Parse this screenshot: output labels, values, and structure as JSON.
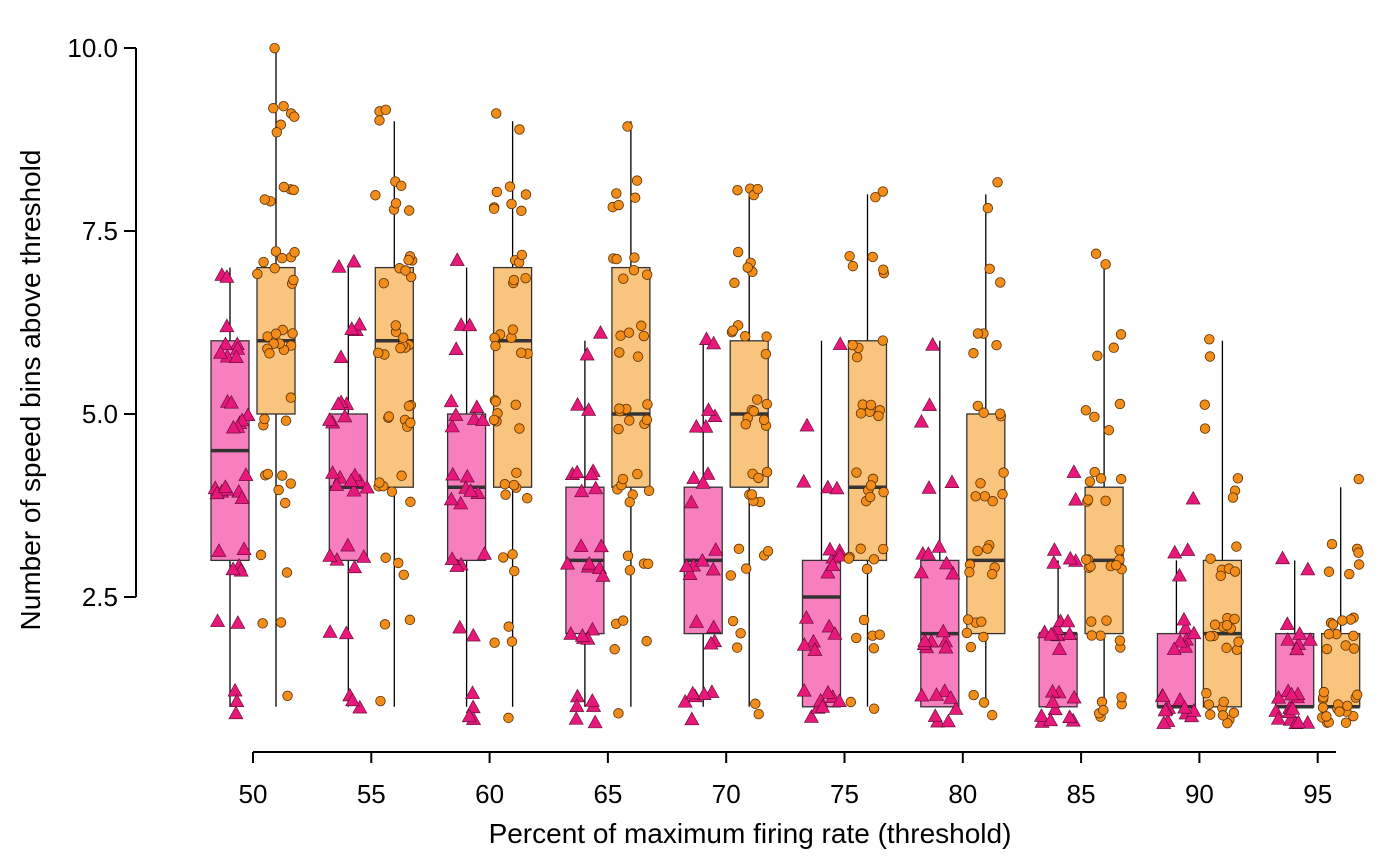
{
  "chart_data": {
    "type": "box",
    "xlabel": "Percent of maximum firing rate (threshold)",
    "ylabel": "Number of speed bins above threshold",
    "categories": [
      "50",
      "55",
      "60",
      "65",
      "70",
      "75",
      "80",
      "85",
      "90",
      "95"
    ],
    "y_ticks": [
      "2.5",
      "5.0",
      "7.5",
      "10.0"
    ],
    "ylim": [
      0.7,
      10.0
    ],
    "grid": false,
    "legend": "none",
    "colors": {
      "pink_fill": "#f77fbf",
      "pink_marker": "#e6187a",
      "orange_fill": "#f9c47e",
      "orange_marker": "#f28c1b",
      "outline": "#333333"
    },
    "series": [
      {
        "marker": "triangle",
        "boxes": [
          {
            "q1": 3.0,
            "median": 4.5,
            "q3": 6.0,
            "whisker_low": 1.0,
            "whisker_high": 7.0
          },
          {
            "q1": 3.0,
            "median": 4.0,
            "q3": 5.0,
            "whisker_low": 1.0,
            "whisker_high": 7.0
          },
          {
            "q1": 3.0,
            "median": 4.0,
            "q3": 5.0,
            "whisker_low": 1.0,
            "whisker_high": 7.0
          },
          {
            "q1": 2.0,
            "median": 3.0,
            "q3": 4.0,
            "whisker_low": 1.0,
            "whisker_high": 6.0
          },
          {
            "q1": 2.0,
            "median": 3.0,
            "q3": 4.0,
            "whisker_low": 1.0,
            "whisker_high": 6.0
          },
          {
            "q1": 1.0,
            "median": 2.5,
            "q3": 3.0,
            "whisker_low": 1.0,
            "whisker_high": 6.0
          },
          {
            "q1": 1.0,
            "median": 2.0,
            "q3": 3.0,
            "whisker_low": 1.0,
            "whisker_high": 6.0
          },
          {
            "q1": 1.0,
            "median": 2.0,
            "q3": 2.0,
            "whisker_low": 1.0,
            "whisker_high": 3.0
          },
          {
            "q1": 1.0,
            "median": 1.0,
            "q3": 2.0,
            "whisker_low": 1.0,
            "whisker_high": 3.0
          },
          {
            "q1": 1.0,
            "median": 1.0,
            "q3": 2.0,
            "whisker_low": 1.0,
            "whisker_high": 3.0
          }
        ],
        "points": [
          [
            1,
            1,
            1,
            2,
            2,
            3,
            3,
            3,
            3,
            3,
            4,
            4,
            4,
            4,
            4,
            4,
            4,
            4,
            5,
            5,
            5,
            5,
            5,
            5,
            5,
            6,
            6,
            6,
            6,
            6,
            6,
            6,
            7,
            7
          ],
          [
            1,
            1,
            1,
            2,
            2,
            3,
            3,
            3,
            3,
            3,
            4,
            4,
            4,
            4,
            4,
            4,
            4,
            4,
            5,
            5,
            5,
            5,
            5,
            5,
            6,
            6,
            6,
            6,
            7,
            7
          ],
          [
            1,
            1,
            1,
            1,
            2,
            2,
            3,
            3,
            3,
            3,
            4,
            4,
            4,
            4,
            4,
            4,
            4,
            5,
            5,
            5,
            5,
            5,
            5,
            6,
            6,
            6,
            7
          ],
          [
            1,
            1,
            1,
            1,
            1,
            1,
            2,
            2,
            2,
            2,
            2,
            3,
            3,
            3,
            3,
            3,
            3,
            3,
            4,
            4,
            4,
            4,
            4,
            4,
            5,
            5,
            6,
            6
          ],
          [
            1,
            1,
            1,
            1,
            1,
            1,
            2,
            2,
            2,
            2,
            3,
            3,
            3,
            3,
            3,
            3,
            4,
            4,
            4,
            4,
            5,
            5,
            5,
            5,
            6,
            6
          ],
          [
            1,
            1,
            1,
            1,
            1,
            1,
            1,
            1,
            2,
            2,
            2,
            2,
            2,
            2,
            3,
            3,
            3,
            3,
            3,
            3,
            4,
            4,
            4,
            5,
            6
          ],
          [
            1,
            1,
            1,
            1,
            1,
            1,
            1,
            1,
            2,
            2,
            2,
            2,
            2,
            2,
            2,
            3,
            3,
            3,
            3,
            3,
            3,
            4,
            4,
            5,
            5,
            6
          ],
          [
            1,
            1,
            1,
            1,
            1,
            1,
            1,
            1,
            1,
            1,
            2,
            2,
            2,
            2,
            2,
            2,
            2,
            2,
            2,
            3,
            3,
            3,
            3,
            4,
            4
          ],
          [
            1,
            1,
            1,
            1,
            1,
            1,
            1,
            1,
            1,
            1,
            1,
            1,
            2,
            2,
            2,
            2,
            2,
            2,
            2,
            3,
            3,
            3,
            4
          ],
          [
            1,
            1,
            1,
            1,
            1,
            1,
            1,
            1,
            1,
            1,
            1,
            1,
            1,
            1,
            2,
            2,
            2,
            2,
            2,
            2,
            3,
            3
          ]
        ]
      },
      {
        "marker": "circle",
        "boxes": [
          {
            "q1": 5.0,
            "median": 6.0,
            "q3": 7.0,
            "whisker_low": 1.0,
            "whisker_high": 10.0
          },
          {
            "q1": 4.0,
            "median": 6.0,
            "q3": 7.0,
            "whisker_low": 1.0,
            "whisker_high": 9.0
          },
          {
            "q1": 4.0,
            "median": 6.0,
            "q3": 7.0,
            "whisker_low": 1.0,
            "whisker_high": 9.0
          },
          {
            "q1": 4.0,
            "median": 5.0,
            "q3": 7.0,
            "whisker_low": 1.0,
            "whisker_high": 9.0
          },
          {
            "q1": 4.0,
            "median": 5.0,
            "q3": 6.0,
            "whisker_low": 1.0,
            "whisker_high": 8.0
          },
          {
            "q1": 3.0,
            "median": 4.0,
            "q3": 6.0,
            "whisker_low": 1.0,
            "whisker_high": 8.0
          },
          {
            "q1": 2.0,
            "median": 3.0,
            "q3": 5.0,
            "whisker_low": 1.0,
            "whisker_high": 8.0
          },
          {
            "q1": 2.0,
            "median": 3.0,
            "q3": 4.0,
            "whisker_low": 1.0,
            "whisker_high": 7.0
          },
          {
            "q1": 1.0,
            "median": 2.0,
            "q3": 3.0,
            "whisker_low": 1.0,
            "whisker_high": 6.0
          },
          {
            "q1": 1.0,
            "median": 1.0,
            "q3": 2.0,
            "whisker_low": 1.0,
            "whisker_high": 4.0
          }
        ],
        "points": [
          [
            1,
            2,
            2,
            3,
            3,
            4,
            4,
            4,
            4,
            4,
            4,
            5,
            5,
            5,
            5,
            6,
            6,
            6,
            6,
            6,
            6,
            6,
            6,
            6,
            6,
            7,
            7,
            7,
            7,
            7,
            7,
            7,
            7,
            7,
            8,
            8,
            8,
            8,
            8,
            9,
            9,
            9,
            9,
            9,
            9,
            10
          ],
          [
            1,
            2,
            2,
            3,
            3,
            3,
            4,
            4,
            4,
            4,
            4,
            4,
            5,
            5,
            5,
            5,
            5,
            5,
            5,
            6,
            6,
            6,
            6,
            6,
            6,
            6,
            6,
            6,
            7,
            7,
            7,
            7,
            7,
            7,
            7,
            8,
            8,
            8,
            8,
            8,
            8,
            9,
            9,
            9
          ],
          [
            1,
            2,
            2,
            2,
            3,
            3,
            3,
            4,
            4,
            4,
            4,
            4,
            4,
            5,
            5,
            5,
            5,
            5,
            5,
            5,
            6,
            6,
            6,
            6,
            6,
            6,
            6,
            7,
            7,
            7,
            7,
            7,
            7,
            8,
            8,
            8,
            8,
            8,
            8,
            8,
            9,
            9
          ],
          [
            1,
            2,
            2,
            2,
            2,
            3,
            3,
            3,
            3,
            4,
            4,
            4,
            4,
            4,
            4,
            4,
            5,
            5,
            5,
            5,
            5,
            5,
            5,
            5,
            6,
            6,
            6,
            6,
            6,
            6,
            7,
            7,
            7,
            7,
            7,
            7,
            8,
            8,
            8,
            8,
            8,
            9
          ],
          [
            1,
            1,
            2,
            2,
            2,
            3,
            3,
            3,
            3,
            3,
            4,
            4,
            4,
            4,
            4,
            4,
            4,
            5,
            5,
            5,
            5,
            5,
            5,
            5,
            5,
            6,
            6,
            6,
            6,
            6,
            6,
            7,
            7,
            7,
            7,
            7,
            8,
            8,
            8,
            8
          ],
          [
            1,
            1,
            2,
            2,
            2,
            2,
            2,
            3,
            3,
            3,
            3,
            3,
            3,
            4,
            4,
            4,
            4,
            4,
            4,
            4,
            5,
            5,
            5,
            5,
            5,
            5,
            6,
            6,
            6,
            6,
            7,
            7,
            7,
            7,
            7,
            8,
            8
          ],
          [
            1,
            1,
            1,
            2,
            2,
            2,
            2,
            2,
            2,
            3,
            3,
            3,
            3,
            3,
            3,
            3,
            4,
            4,
            4,
            4,
            4,
            4,
            5,
            5,
            5,
            5,
            6,
            6,
            6,
            6,
            7,
            7,
            8,
            8
          ],
          [
            1,
            1,
            1,
            1,
            1,
            1,
            2,
            2,
            2,
            2,
            2,
            2,
            3,
            3,
            3,
            3,
            3,
            3,
            3,
            3,
            3,
            4,
            4,
            4,
            4,
            4,
            4,
            4,
            5,
            5,
            5,
            5,
            6,
            6,
            6,
            7,
            7
          ],
          [
            1,
            1,
            1,
            1,
            1,
            1,
            1,
            1,
            1,
            2,
            2,
            2,
            2,
            2,
            2,
            2,
            2,
            2,
            2,
            2,
            3,
            3,
            3,
            3,
            3,
            3,
            4,
            4,
            4,
            5,
            5,
            6,
            6
          ],
          [
            1,
            1,
            1,
            1,
            1,
            1,
            1,
            1,
            1,
            1,
            1,
            1,
            1,
            1,
            1,
            1,
            1,
            2,
            2,
            2,
            2,
            2,
            2,
            2,
            2,
            2,
            2,
            2,
            3,
            3,
            3,
            3,
            3,
            3,
            4
          ]
        ]
      }
    ]
  }
}
